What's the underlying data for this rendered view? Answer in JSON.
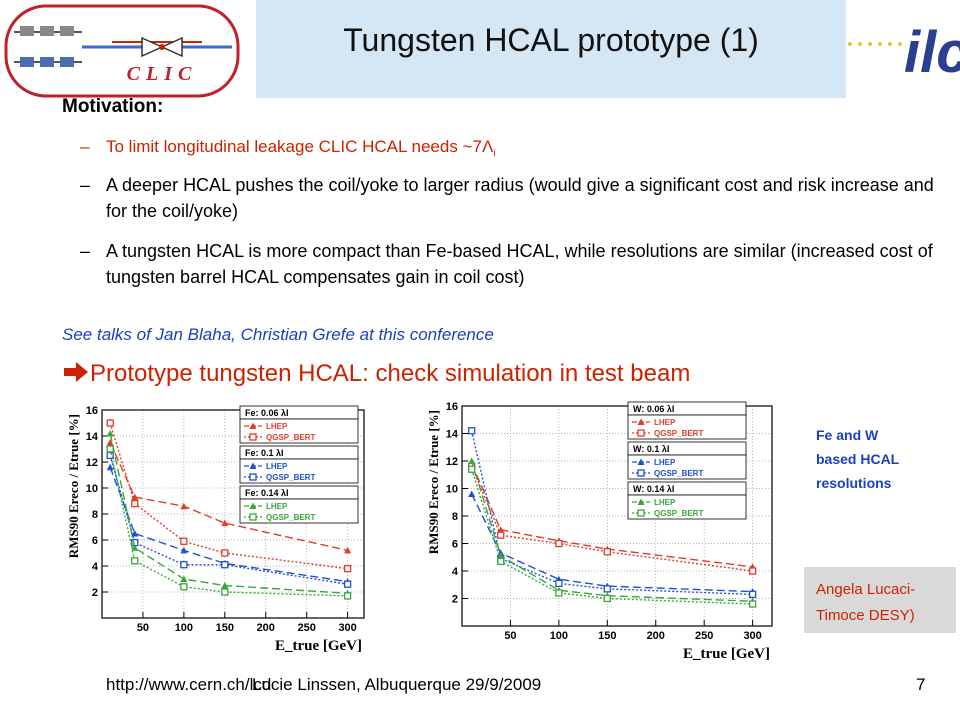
{
  "header": {
    "title": "Tungsten HCAL prototype (1)",
    "clic_logo_text": "CLIC",
    "ilc_logo_text": "ilc",
    "colors": {
      "title_box": "#d5e6f4",
      "accent_red": "#cc2200",
      "accent_blue": "#1a3fbf"
    }
  },
  "content": {
    "motivation_label": "Motivation:",
    "bullets": [
      {
        "dash": "–",
        "text": "To limit longitudinal leakage CLIC HCAL needs ~7Λ",
        "subscript": "i"
      },
      {
        "dash": "–",
        "text": "A deeper HCAL pushes the coil/yoke to larger radius (would give a significant cost and risk increase and for the coil/yoke)"
      },
      {
        "dash": "–",
        "text": "A tungsten HCAL is more compact than Fe-based HCAL, while resolutions are similar (increased cost of tungsten barrel HCAL compensates gain in coil cost)"
      }
    ],
    "see_talks": "See talks of Jan Blaha, Christian Grefe at this conference",
    "arrow_icon": "right-arrow-icon",
    "prototype_line": "Prototype tungsten HCAL: check simulation in test beam"
  },
  "chart_data": [
    {
      "type": "line",
      "title": "",
      "xlabel": "E_true [GeV]",
      "ylabel": "RMS90 Ereco / Etrue [%]",
      "xlim": [
        0,
        320
      ],
      "ylim": [
        0,
        16
      ],
      "xticks": [
        0,
        50,
        100,
        150,
        200,
        250,
        300
      ],
      "yticks": [
        0,
        2,
        4,
        6,
        8,
        10,
        12,
        14,
        16
      ],
      "legend_position": "top-right",
      "x": [
        10,
        40,
        100,
        150,
        300
      ],
      "legend_groups": [
        {
          "title": "Fe: 0.06 λI",
          "entries": [
            "LHEP",
            "QGSP_BERT"
          ]
        },
        {
          "title": "Fe: 0.1 λI",
          "entries": [
            "LHEP",
            "QGSP_BERT"
          ]
        },
        {
          "title": "Fe: 0.14 λI",
          "entries": [
            "LHEP",
            "QGSP_BERT"
          ]
        }
      ],
      "series": [
        {
          "name": "LHEP",
          "color": "#e03c2d",
          "marker": "triangle",
          "dash": "8,4",
          "values": [
            13.5,
            9.3,
            8.6,
            7.3,
            5.2
          ]
        },
        {
          "name": "QGSP_BERT",
          "color": "#e03c2d",
          "marker": "square",
          "dash": "2,2",
          "values": [
            15.0,
            8.8,
            5.9,
            5.0,
            3.8
          ]
        },
        {
          "name": "LHEP",
          "color": "#1f4fd6",
          "marker": "triangle",
          "dash": "8,4",
          "values": [
            11.6,
            6.5,
            5.2,
            4.2,
            2.8
          ]
        },
        {
          "name": "QGSP_BERT",
          "color": "#1f4fd6",
          "marker": "square",
          "dash": "2,2",
          "values": [
            12.5,
            5.8,
            4.1,
            4.1,
            2.6
          ]
        },
        {
          "name": "LHEP",
          "color": "#3aa63a",
          "marker": "triangle",
          "dash": "8,4",
          "values": [
            14.2,
            5.4,
            3.0,
            2.5,
            1.9
          ]
        },
        {
          "name": "QGSP_BERT",
          "color": "#3aa63a",
          "marker": "square",
          "dash": "2,2",
          "values": [
            13.0,
            4.4,
            2.4,
            2.0,
            1.7
          ]
        }
      ]
    },
    {
      "type": "line",
      "title": "",
      "xlabel": "E_true [GeV]",
      "ylabel": "RMS90 Ereco / Etrue [%]",
      "xlim": [
        0,
        320
      ],
      "ylim": [
        0,
        16
      ],
      "xticks": [
        0,
        50,
        100,
        150,
        200,
        250,
        300
      ],
      "yticks": [
        0,
        2,
        4,
        6,
        8,
        10,
        12,
        14,
        16
      ],
      "legend_position": "top-right",
      "x": [
        10,
        40,
        100,
        150,
        300
      ],
      "legend_groups": [
        {
          "title": "W: 0.06 λI",
          "entries": [
            "LHEP",
            "QGSP_BERT"
          ]
        },
        {
          "title": "W: 0.1 λI",
          "entries": [
            "LHEP",
            "QGSP_BERT"
          ]
        },
        {
          "title": "W: 0.14 λI",
          "entries": [
            "LHEP",
            "QGSP_BERT"
          ]
        }
      ],
      "series": [
        {
          "name": "LHEP",
          "color": "#e03c2d",
          "marker": "triangle",
          "dash": "8,4",
          "values": [
            11.8,
            7.0,
            6.2,
            5.6,
            4.3
          ]
        },
        {
          "name": "QGSP_BERT",
          "color": "#e03c2d",
          "marker": "square",
          "dash": "2,2",
          "values": [
            11.6,
            6.6,
            6.0,
            5.4,
            4.0
          ]
        },
        {
          "name": "LHEP",
          "color": "#1f4fd6",
          "marker": "triangle",
          "dash": "8,4",
          "values": [
            9.6,
            5.3,
            3.4,
            2.9,
            2.5
          ]
        },
        {
          "name": "QGSP_BERT",
          "color": "#1f4fd6",
          "marker": "square",
          "dash": "2,2",
          "values": [
            14.2,
            4.9,
            3.1,
            2.7,
            2.3
          ]
        },
        {
          "name": "LHEP",
          "color": "#3aa63a",
          "marker": "triangle",
          "dash": "8,4",
          "values": [
            12.0,
            5.1,
            2.6,
            2.2,
            1.8
          ]
        },
        {
          "name": "QGSP_BERT",
          "color": "#3aa63a",
          "marker": "square",
          "dash": "2,2",
          "values": [
            11.4,
            4.7,
            2.4,
            2.0,
            1.6
          ]
        }
      ]
    }
  ],
  "side_notes": {
    "note1_lines": [
      "Fe and W",
      "based HCAL",
      "resolutions"
    ],
    "note2_lines": [
      "Angela Lucaci-",
      "Timoce DESY)"
    ],
    "note2_box_color": "#d9d9d9"
  },
  "footer": {
    "url": "http://www.cern.ch/lcd",
    "author": "Lucie Linssen, Albuquerque 29/9/2009",
    "page": "7"
  }
}
